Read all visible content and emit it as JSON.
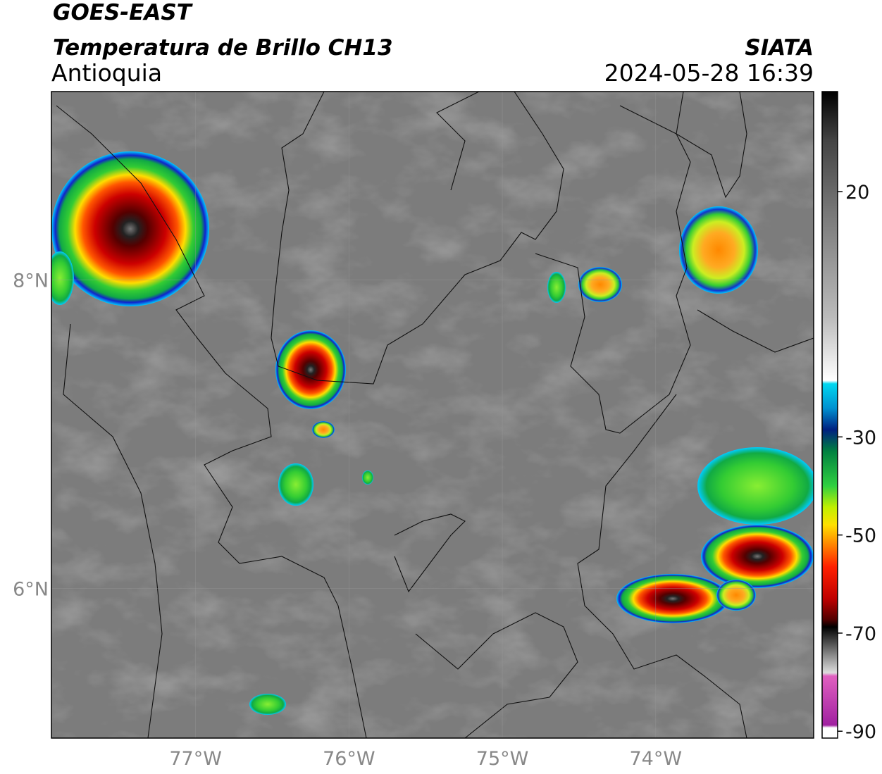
{
  "header": {
    "satellite": "GOES-EAST",
    "product": "Temperatura de Brillo CH13",
    "region": "Antioquia",
    "source": "SIATA",
    "datetime": "2024-05-28 16:39"
  },
  "map": {
    "xlim": [
      -77.94,
      -72.97
    ],
    "ylim": [
      5.03,
      9.22
    ],
    "xticks": [
      {
        "value": -77,
        "label": "77°W"
      },
      {
        "value": -76,
        "label": "76°W"
      },
      {
        "value": -75,
        "label": "75°W"
      },
      {
        "value": -74,
        "label": "74°W"
      }
    ],
    "yticks": [
      {
        "value": 8,
        "label": "8°N"
      },
      {
        "value": 6,
        "label": "6°N"
      }
    ]
  },
  "colorbar": {
    "lim": [
      -91.4,
      40.4
    ],
    "ticks": [
      20,
      -30,
      -50,
      -70,
      -90
    ]
  }
}
